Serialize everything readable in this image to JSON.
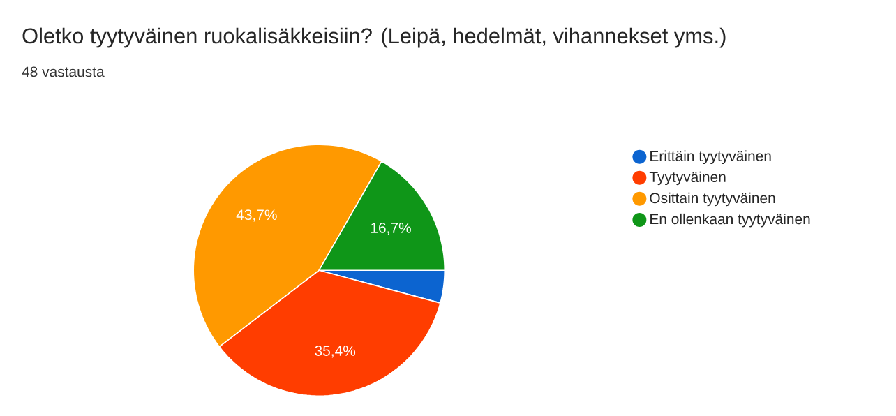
{
  "chart_data": {
    "type": "pie",
    "title": "Oletko tyytyväinen ruokalisäkkeisiin? (Leipä, hedelmät, vihannekset yms.)",
    "subtitle": "48 vastausta",
    "categories": [
      "Erittäin tyytyväinen",
      "Tyytyväinen",
      "Osittain tyytyväinen",
      "En ollenkaan tyytyväinen"
    ],
    "values": [
      4.2,
      35.4,
      43.7,
      16.7
    ],
    "colors": [
      "#0c64d0",
      "#ff3d00",
      "#ff9900",
      "#0f9618"
    ],
    "value_labels": [
      null,
      "35,4%",
      "43,7%",
      "16,7%"
    ],
    "legend": "right"
  }
}
